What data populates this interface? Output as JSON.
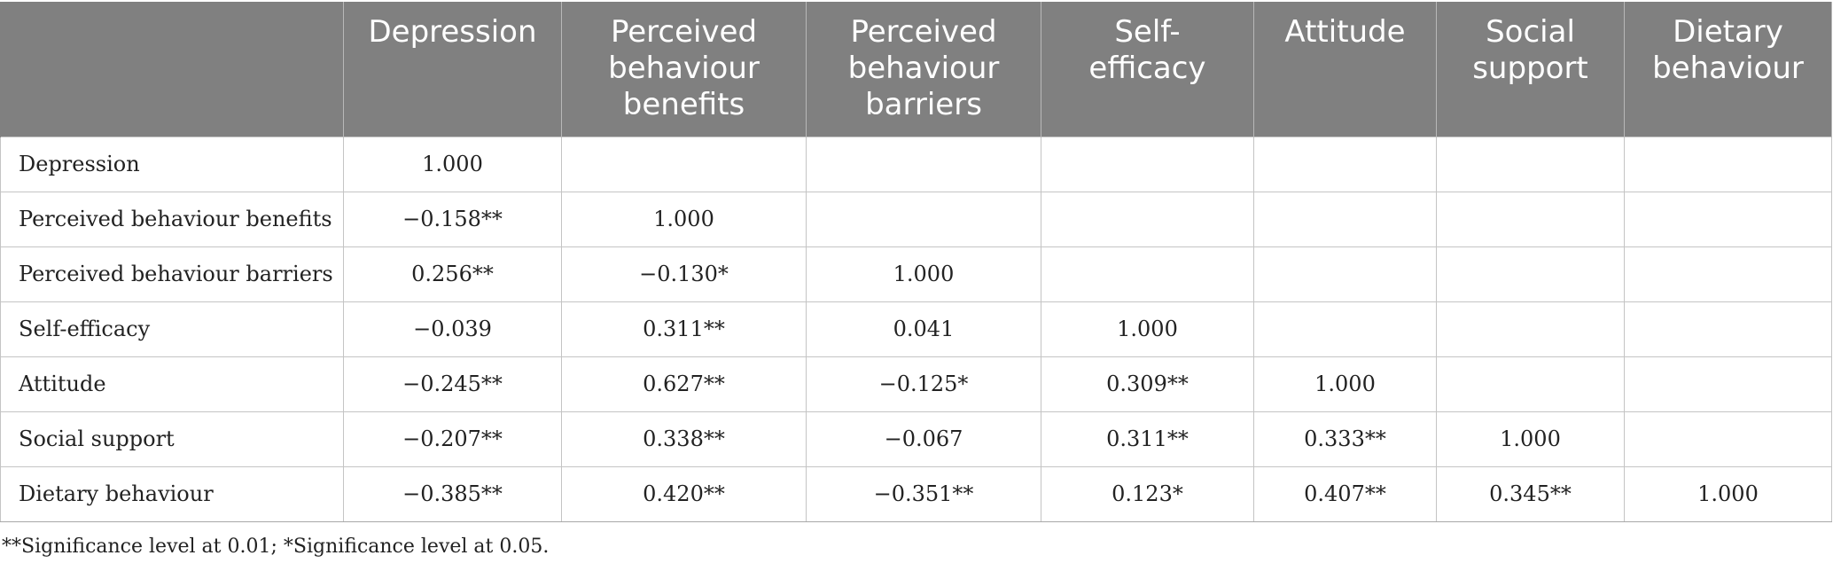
{
  "table": {
    "corner": "",
    "columns": [
      "Depression",
      "Perceived behaviour benefits",
      "Perceived behaviour barriers",
      "Self-\nefficacy",
      "Attitude",
      "Social support",
      "Dietary behaviour"
    ],
    "rows": [
      {
        "label": "Depression",
        "cells": [
          "1.000",
          "",
          "",
          "",
          "",
          "",
          ""
        ]
      },
      {
        "label": "Perceived behaviour benefits",
        "cells": [
          "−0.158**",
          "1.000",
          "",
          "",
          "",
          "",
          ""
        ]
      },
      {
        "label": "Perceived behaviour barriers",
        "cells": [
          "0.256**",
          "−0.130*",
          "1.000",
          "",
          "",
          "",
          ""
        ]
      },
      {
        "label": "Self-efficacy",
        "cells": [
          "−0.039",
          "0.311**",
          "0.041",
          "1.000",
          "",
          "",
          ""
        ]
      },
      {
        "label": "Attitude",
        "cells": [
          "−0.245**",
          "0.627**",
          "−0.125*",
          "0.309**",
          "1.000",
          "",
          ""
        ]
      },
      {
        "label": "Social support",
        "cells": [
          "−0.207**",
          "0.338**",
          "−0.067",
          "0.311**",
          "0.333**",
          "1.000",
          ""
        ]
      },
      {
        "label": "Dietary behaviour",
        "cells": [
          "−0.385**",
          "0.420**",
          "−0.351**",
          "0.123*",
          "0.407**",
          "0.345**",
          "1.000"
        ]
      }
    ]
  },
  "footnote": "**Significance level at 0.01; *Significance level at 0.05.",
  "colors": {
    "header_background": "#808080",
    "header_text": "#ffffff",
    "grid_lines": "#c4c4c4",
    "body_text": "#222222"
  }
}
